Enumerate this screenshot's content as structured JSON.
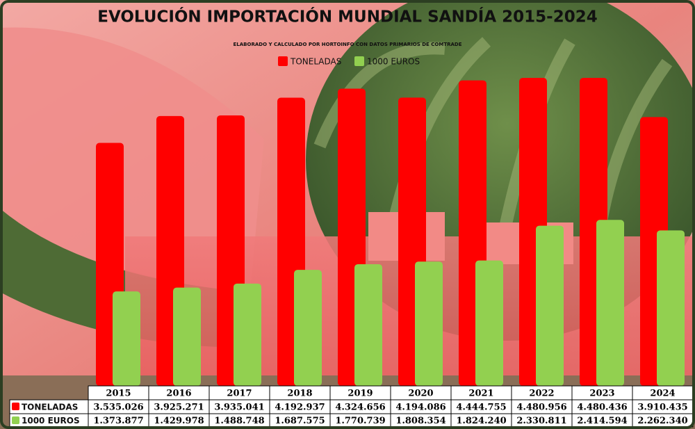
{
  "chart_data": {
    "type": "bar",
    "title": "EVOLUCIÓN IMPORTACIÓN MUNDIAL SANDÍA 2015-2024",
    "subtitle": "ELABORADO Y CALCULADO POR HORTOINFO CON DATOS PRIMARIOS DE COMTRADE",
    "categories": [
      "2015",
      "2016",
      "2017",
      "2018",
      "2019",
      "2020",
      "2021",
      "2022",
      "2023",
      "2024"
    ],
    "series": [
      {
        "name": "TONELADAS",
        "color": "#ff0000",
        "values": [
          3535026,
          3925271,
          3935041,
          4192937,
          4324656,
          4194086,
          4444755,
          4480956,
          4480436,
          3910435
        ],
        "value_labels": [
          "3.535.026",
          "3.925.271",
          "3.935.041",
          "4.192.937",
          "4.324.656",
          "4.194.086",
          "4.444.755",
          "4.480.956",
          "4.480.436",
          "3.910.435"
        ]
      },
      {
        "name": "1000 EUROS",
        "color": "#92d050",
        "values": [
          1373877,
          1429978,
          1488748,
          1687575,
          1770739,
          1808354,
          1824240,
          2330811,
          2414594,
          2262340
        ],
        "value_labels": [
          "1.373.877",
          "1.429.978",
          "1.488.748",
          "1.687.575",
          "1.770.739",
          "1.808.354",
          "1.824.240",
          "2.330.811",
          "2.414.594",
          "2.262.340"
        ]
      }
    ]
  }
}
